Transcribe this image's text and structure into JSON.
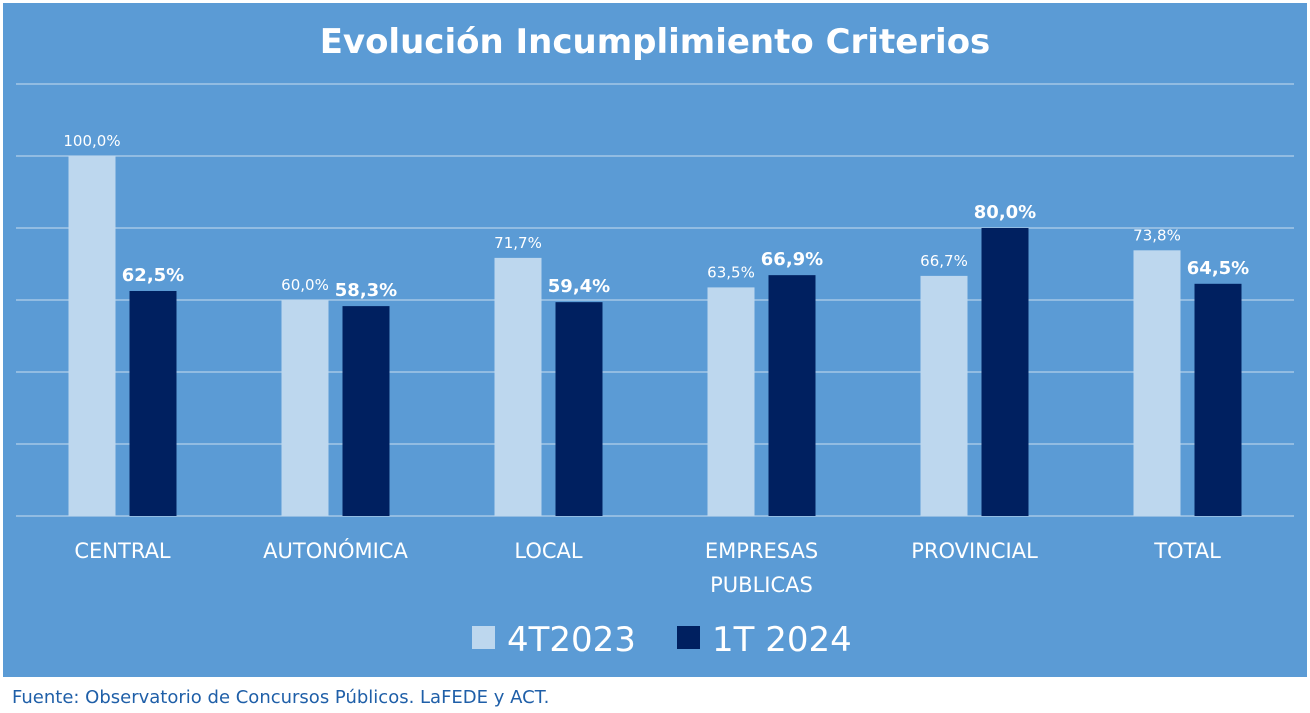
{
  "source": "Fuente: Observatorio de Concursos Públicos. LaFEDE y ACT.",
  "chart_data": {
    "type": "bar",
    "title": "Evolución Incumplimiento Criterios",
    "categories": [
      "CENTRAL",
      "AUTONÓMICA",
      "LOCAL",
      "EMPRESAS PUBLICAS",
      "PROVINCIAL",
      "TOTAL"
    ],
    "category_lines": [
      [
        "CENTRAL"
      ],
      [
        "AUTONÓMICA"
      ],
      [
        "LOCAL"
      ],
      [
        "EMPRESAS",
        "PUBLICAS"
      ],
      [
        "PROVINCIAL"
      ],
      [
        "TOTAL"
      ]
    ],
    "series": [
      {
        "name": "4T2023",
        "values": [
          100.0,
          60.0,
          71.7,
          63.5,
          66.7,
          73.8
        ],
        "labels": [
          "100,0%",
          "60,0%",
          "71,7%",
          "63,5%",
          "66,7%",
          "73,8%"
        ],
        "color": "#bdd7ee"
      },
      {
        "name": "1T 2024",
        "values": [
          62.5,
          58.3,
          59.4,
          66.9,
          80.0,
          64.5
        ],
        "labels": [
          "62,5%",
          "58,3%",
          "59,4%",
          "66,9%",
          "80,0%",
          "64,5%"
        ],
        "color": "#002060"
      }
    ],
    "ylim": [
      0,
      120
    ],
    "grid": true,
    "legend": "bottom",
    "background": "#5b9bd5",
    "gridline_color": "#c9ddf0",
    "text_color": "#ffffff"
  }
}
